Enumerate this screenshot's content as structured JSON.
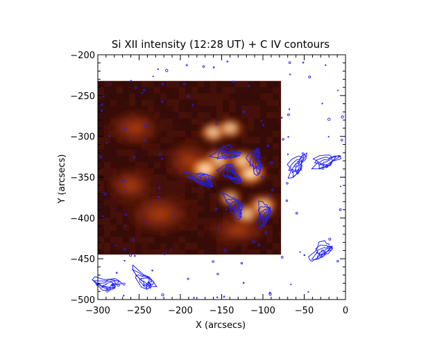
{
  "chart_data": {
    "type": "heatmap",
    "title": "Si XII intensity (12:28 UT) + C IV contours",
    "xlabel": "X (arcsecs)",
    "ylabel": "Y (arcsecs)",
    "xlim": [
      -300,
      0
    ],
    "ylim": [
      -500,
      -200
    ],
    "x_ticks": [
      "−300",
      "−250",
      "−200",
      "−150",
      "−100",
      "−50",
      "0"
    ],
    "y_ticks": [
      "−500",
      "−450",
      "−400",
      "−350",
      "−300",
      "−250",
      "−200"
    ],
    "x_tick_values": [
      -300,
      -250,
      -200,
      -150,
      -100,
      -50,
      0
    ],
    "y_tick_values": [
      -500,
      -450,
      -400,
      -350,
      -300,
      -250,
      -200
    ],
    "image_extent": {
      "x": [
        -300,
        -78
      ],
      "y": [
        -445,
        -232
      ]
    },
    "colormap": "red-temperature (black → dark red → orange → white)",
    "contour_color": "#1f1fff",
    "bright_features": [
      {
        "x": -160,
        "y": -295,
        "intensity": 0.75
      },
      {
        "x": -140,
        "y": -290,
        "intensity": 0.7
      },
      {
        "x": -155,
        "y": -330,
        "intensity": 0.85
      },
      {
        "x": -170,
        "y": -340,
        "intensity": 0.95
      },
      {
        "x": -115,
        "y": -345,
        "intensity": 1.0
      },
      {
        "x": -125,
        "y": -330,
        "intensity": 0.8
      },
      {
        "x": -100,
        "y": -385,
        "intensity": 0.85
      },
      {
        "x": -120,
        "y": -395,
        "intensity": 0.7
      },
      {
        "x": -140,
        "y": -375,
        "intensity": 0.55
      }
    ],
    "contour_regions": [
      {
        "x": -145,
        "y": -320,
        "type": "loop"
      },
      {
        "x": -140,
        "y": -345,
        "type": "loop"
      },
      {
        "x": -110,
        "y": -330,
        "type": "loop"
      },
      {
        "x": -60,
        "y": -335,
        "type": "loop"
      },
      {
        "x": -25,
        "y": -330,
        "type": "loop"
      },
      {
        "x": -175,
        "y": -352,
        "type": "loop"
      },
      {
        "x": -135,
        "y": -385,
        "type": "loop"
      },
      {
        "x": -100,
        "y": -395,
        "type": "loop"
      },
      {
        "x": -30,
        "y": -440,
        "type": "loop"
      },
      {
        "x": -290,
        "y": -480,
        "type": "loop"
      },
      {
        "x": -245,
        "y": -475,
        "type": "loop"
      }
    ]
  }
}
